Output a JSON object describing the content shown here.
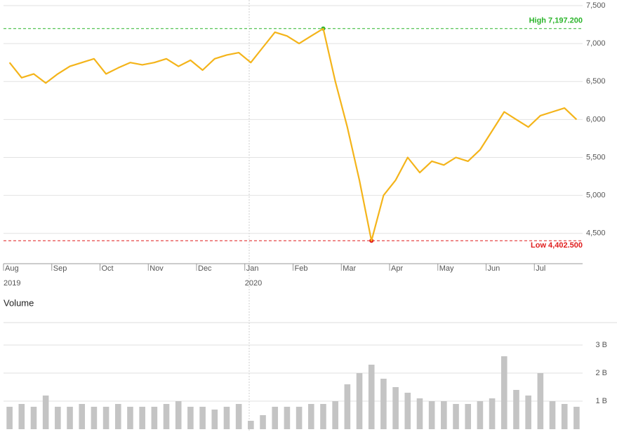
{
  "chart_data": [
    {
      "type": "line",
      "categories": [
        "Aug",
        "Sep",
        "Oct",
        "Nov",
        "Dec",
        "Jan",
        "Feb",
        "Mar",
        "Apr",
        "May",
        "Jun",
        "Jul"
      ],
      "category_years": [
        "2019",
        null,
        null,
        null,
        null,
        "2020",
        null,
        null,
        null,
        null,
        null,
        null
      ],
      "color": "#f4b41a",
      "values": [
        [
          6750,
          6550,
          6600,
          6480
        ],
        [
          6600,
          6700,
          6750,
          6800
        ],
        [
          6600,
          6680,
          6750,
          6720
        ],
        [
          6750,
          6800,
          6700,
          6780
        ],
        [
          6650,
          6800,
          6850,
          6880
        ],
        [
          6750,
          6950,
          7150,
          7100
        ],
        [
          7000,
          7100,
          7197.2,
          6500
        ],
        [
          5900,
          5200,
          4402.5,
          5000
        ],
        [
          5200,
          5500,
          5300,
          5450
        ],
        [
          5400,
          5500,
          5450,
          5600
        ],
        [
          5850,
          6100,
          6000,
          5900
        ],
        [
          6050,
          6100,
          6150,
          6000
        ]
      ],
      "high": {
        "value": 7197.2,
        "label": "High 7,197.200",
        "color": "#2bb52b"
      },
      "low": {
        "value": 4402.5,
        "label": "Low 4,402.500",
        "color": "#e01c1c"
      },
      "ylim": [
        4100,
        7500
      ],
      "yticks": [
        {
          "value": 4500,
          "label": "4,500"
        },
        {
          "value": 5000,
          "label": "5,000"
        },
        {
          "value": 5500,
          "label": "5,500"
        },
        {
          "value": 6000,
          "label": "6,000"
        },
        {
          "value": 6500,
          "label": "6,500"
        },
        {
          "value": 7000,
          "label": "7,000"
        },
        {
          "value": 7500,
          "label": "7,500"
        }
      ],
      "grid": true
    },
    {
      "type": "bar",
      "title": "Volume",
      "color": "#c4c4c4",
      "values": [
        [
          0.8,
          0.9,
          0.8,
          1.2
        ],
        [
          0.8,
          0.8,
          0.9,
          0.8
        ],
        [
          0.8,
          0.9,
          0.8,
          0.8
        ],
        [
          0.8,
          0.9,
          1.0,
          0.8
        ],
        [
          0.8,
          0.7,
          0.8,
          0.9
        ],
        [
          0.3,
          0.5,
          0.8,
          0.8
        ],
        [
          0.8,
          0.9,
          0.9,
          1.0
        ],
        [
          1.6,
          2.0,
          2.3,
          1.8
        ],
        [
          1.5,
          1.3,
          1.1,
          1.0
        ],
        [
          1.0,
          0.9,
          0.9,
          1.0
        ],
        [
          1.1,
          2.6,
          1.4,
          1.2
        ],
        [
          2.0,
          1.0,
          0.9,
          0.8
        ]
      ],
      "ylim": [
        0,
        3.8
      ],
      "yticks": [
        {
          "value": 1,
          "label": "1 B"
        },
        {
          "value": 2,
          "label": "2 B"
        },
        {
          "value": 3,
          "label": "3 B"
        }
      ],
      "grid": true
    }
  ]
}
